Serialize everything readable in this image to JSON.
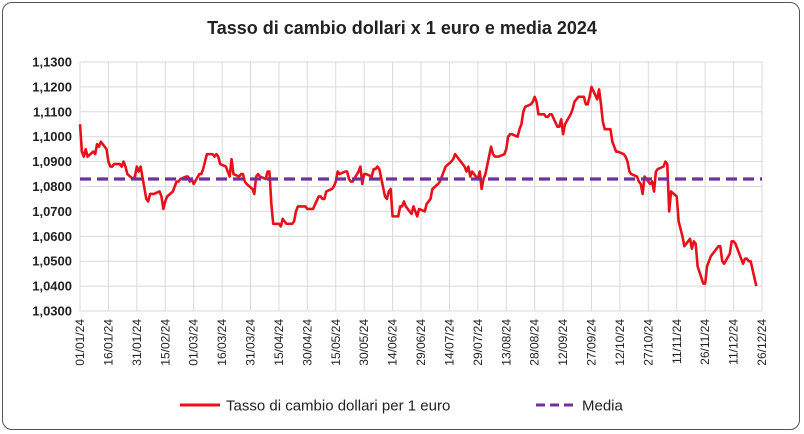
{
  "chart_data": {
    "type": "line",
    "title": "Tasso di cambio dollari x 1 euro e media 2024",
    "xlabel": "",
    "ylabel": "",
    "ylim": [
      1.03,
      1.13
    ],
    "xlim": [
      "2024-01-01",
      "2024-12-26"
    ],
    "y_ticks": [
      "1,0300",
      "1,0400",
      "1,0500",
      "1,0600",
      "1,0700",
      "1,0800",
      "1,0900",
      "1,1000",
      "1,1100",
      "1,1200",
      "1,1300"
    ],
    "x_ticks": [
      "01/01/24",
      "16/01/24",
      "31/01/24",
      "15/02/24",
      "01/03/24",
      "16/03/24",
      "31/03/24",
      "15/04/24",
      "30/04/24",
      "15/05/24",
      "30/05/24",
      "14/06/24",
      "29/06/24",
      "14/07/24",
      "29/07/24",
      "13/08/24",
      "28/08/24",
      "12/09/24",
      "27/09/24",
      "12/10/24",
      "27/10/24",
      "11/11/24",
      "26/11/24",
      "11/12/24",
      "26/12/24"
    ],
    "grid": true,
    "legend_position": "bottom",
    "series": [
      {
        "name": "Tasso di cambio dollari per 1 euro",
        "color": "#e8101a",
        "points": [
          [
            "2024-01-01",
            1.105
          ],
          [
            "2024-01-02",
            1.094
          ],
          [
            "2024-01-03",
            1.092
          ],
          [
            "2024-01-04",
            1.095
          ],
          [
            "2024-01-05",
            1.092
          ],
          [
            "2024-01-08",
            1.094
          ],
          [
            "2024-01-09",
            1.093
          ],
          [
            "2024-01-10",
            1.097
          ],
          [
            "2024-01-11",
            1.096
          ],
          [
            "2024-01-12",
            1.098
          ],
          [
            "2024-01-15",
            1.095
          ],
          [
            "2024-01-16",
            1.09
          ],
          [
            "2024-01-17",
            1.088
          ],
          [
            "2024-01-18",
            1.088
          ],
          [
            "2024-01-19",
            1.089
          ],
          [
            "2024-01-22",
            1.089
          ],
          [
            "2024-01-23",
            1.088
          ],
          [
            "2024-01-24",
            1.09
          ],
          [
            "2024-01-25",
            1.088
          ],
          [
            "2024-01-26",
            1.085
          ],
          [
            "2024-01-29",
            1.083
          ],
          [
            "2024-01-30",
            1.084
          ],
          [
            "2024-01-31",
            1.088
          ],
          [
            "2024-02-01",
            1.086
          ],
          [
            "2024-02-02",
            1.088
          ],
          [
            "2024-02-05",
            1.075
          ],
          [
            "2024-02-06",
            1.074
          ],
          [
            "2024-02-07",
            1.077
          ],
          [
            "2024-02-08",
            1.077
          ],
          [
            "2024-02-09",
            1.077
          ],
          [
            "2024-02-12",
            1.078
          ],
          [
            "2024-02-13",
            1.076
          ],
          [
            "2024-02-14",
            1.071
          ],
          [
            "2024-02-15",
            1.074
          ],
          [
            "2024-02-16",
            1.076
          ],
          [
            "2024-02-19",
            1.078
          ],
          [
            "2024-02-20",
            1.08
          ],
          [
            "2024-02-21",
            1.082
          ],
          [
            "2024-02-22",
            1.082
          ],
          [
            "2024-02-23",
            1.083
          ],
          [
            "2024-02-26",
            1.084
          ],
          [
            "2024-02-27",
            1.084
          ],
          [
            "2024-02-28",
            1.082
          ],
          [
            "2024-02-29",
            1.083
          ],
          [
            "2024-03-01",
            1.081
          ],
          [
            "2024-03-04",
            1.085
          ],
          [
            "2024-03-05",
            1.085
          ],
          [
            "2024-03-06",
            1.087
          ],
          [
            "2024-03-07",
            1.09
          ],
          [
            "2024-03-08",
            1.093
          ],
          [
            "2024-03-11",
            1.093
          ],
          [
            "2024-03-12",
            1.092
          ],
          [
            "2024-03-13",
            1.093
          ],
          [
            "2024-03-14",
            1.092
          ],
          [
            "2024-03-15",
            1.089
          ],
          [
            "2024-03-18",
            1.088
          ],
          [
            "2024-03-19",
            1.086
          ],
          [
            "2024-03-20",
            1.084
          ],
          [
            "2024-03-21",
            1.091
          ],
          [
            "2024-03-22",
            1.085
          ],
          [
            "2024-03-25",
            1.084
          ],
          [
            "2024-03-26",
            1.085
          ],
          [
            "2024-03-27",
            1.085
          ],
          [
            "2024-03-28",
            1.082
          ],
          [
            "2024-03-29",
            1.081
          ],
          [
            "2024-04-01",
            1.079
          ],
          [
            "2024-04-02",
            1.077
          ],
          [
            "2024-04-03",
            1.084
          ],
          [
            "2024-04-04",
            1.085
          ],
          [
            "2024-04-05",
            1.084
          ],
          [
            "2024-04-08",
            1.083
          ],
          [
            "2024-04-09",
            1.086
          ],
          [
            "2024-04-10",
            1.086
          ],
          [
            "2024-04-11",
            1.073
          ],
          [
            "2024-04-12",
            1.065
          ],
          [
            "2024-04-15",
            1.065
          ],
          [
            "2024-04-16",
            1.064
          ],
          [
            "2024-04-17",
            1.067
          ],
          [
            "2024-04-18",
            1.066
          ],
          [
            "2024-04-19",
            1.065
          ],
          [
            "2024-04-22",
            1.065
          ],
          [
            "2024-04-23",
            1.066
          ],
          [
            "2024-04-24",
            1.07
          ],
          [
            "2024-04-25",
            1.072
          ],
          [
            "2024-04-26",
            1.072
          ],
          [
            "2024-04-29",
            1.072
          ],
          [
            "2024-04-30",
            1.071
          ],
          [
            "2024-05-01",
            1.071
          ],
          [
            "2024-05-02",
            1.071
          ],
          [
            "2024-05-03",
            1.071
          ],
          [
            "2024-05-06",
            1.076
          ],
          [
            "2024-05-07",
            1.076
          ],
          [
            "2024-05-08",
            1.075
          ],
          [
            "2024-05-09",
            1.075
          ],
          [
            "2024-05-10",
            1.078
          ],
          [
            "2024-05-13",
            1.079
          ],
          [
            "2024-05-14",
            1.08
          ],
          [
            "2024-05-15",
            1.082
          ],
          [
            "2024-05-16",
            1.086
          ],
          [
            "2024-05-17",
            1.085
          ],
          [
            "2024-05-20",
            1.086
          ],
          [
            "2024-05-21",
            1.086
          ],
          [
            "2024-05-22",
            1.083
          ],
          [
            "2024-05-23",
            1.082
          ],
          [
            "2024-05-24",
            1.082
          ],
          [
            "2024-05-27",
            1.086
          ],
          [
            "2024-05-28",
            1.088
          ],
          [
            "2024-05-29",
            1.081
          ],
          [
            "2024-05-30",
            1.085
          ],
          [
            "2024-05-31",
            1.085
          ],
          [
            "2024-06-03",
            1.084
          ],
          [
            "2024-06-04",
            1.087
          ],
          [
            "2024-06-05",
            1.087
          ],
          [
            "2024-06-06",
            1.088
          ],
          [
            "2024-06-07",
            1.087
          ],
          [
            "2024-06-10",
            1.076
          ],
          [
            "2024-06-11",
            1.075
          ],
          [
            "2024-06-12",
            1.078
          ],
          [
            "2024-06-13",
            1.079
          ],
          [
            "2024-06-14",
            1.068
          ],
          [
            "2024-06-17",
            1.068
          ],
          [
            "2024-06-18",
            1.072
          ],
          [
            "2024-06-19",
            1.072
          ],
          [
            "2024-06-20",
            1.074
          ],
          [
            "2024-06-21",
            1.072
          ],
          [
            "2024-06-24",
            1.069
          ],
          [
            "2024-06-25",
            1.072
          ],
          [
            "2024-06-26",
            1.07
          ],
          [
            "2024-06-27",
            1.068
          ],
          [
            "2024-06-28",
            1.071
          ],
          [
            "2024-07-01",
            1.07
          ],
          [
            "2024-07-02",
            1.073
          ],
          [
            "2024-07-03",
            1.074
          ],
          [
            "2024-07-04",
            1.075
          ],
          [
            "2024-07-05",
            1.079
          ],
          [
            "2024-07-08",
            1.081
          ],
          [
            "2024-07-09",
            1.082
          ],
          [
            "2024-07-10",
            1.084
          ],
          [
            "2024-07-11",
            1.086
          ],
          [
            "2024-07-12",
            1.088
          ],
          [
            "2024-07-15",
            1.09
          ],
          [
            "2024-07-16",
            1.091
          ],
          [
            "2024-07-17",
            1.093
          ],
          [
            "2024-07-18",
            1.092
          ],
          [
            "2024-07-19",
            1.091
          ],
          [
            "2024-07-22",
            1.088
          ],
          [
            "2024-07-23",
            1.086
          ],
          [
            "2024-07-24",
            1.088
          ],
          [
            "2024-07-25",
            1.084
          ],
          [
            "2024-07-26",
            1.086
          ],
          [
            "2024-07-29",
            1.083
          ],
          [
            "2024-07-30",
            1.086
          ],
          [
            "2024-07-31",
            1.079
          ],
          [
            "2024-08-01",
            1.083
          ],
          [
            "2024-08-02",
            1.085
          ],
          [
            "2024-08-05",
            1.096
          ],
          [
            "2024-08-06",
            1.093
          ],
          [
            "2024-08-07",
            1.092
          ],
          [
            "2024-08-08",
            1.092
          ],
          [
            "2024-08-09",
            1.092
          ],
          [
            "2024-08-12",
            1.093
          ],
          [
            "2024-08-13",
            1.095
          ],
          [
            "2024-08-14",
            1.1
          ],
          [
            "2024-08-15",
            1.101
          ],
          [
            "2024-08-16",
            1.101
          ],
          [
            "2024-08-19",
            1.1
          ],
          [
            "2024-08-20",
            1.103
          ],
          [
            "2024-08-21",
            1.105
          ],
          [
            "2024-08-22",
            1.11
          ],
          [
            "2024-08-23",
            1.112
          ],
          [
            "2024-08-26",
            1.113
          ],
          [
            "2024-08-27",
            1.114
          ],
          [
            "2024-08-28",
            1.116
          ],
          [
            "2024-08-29",
            1.114
          ],
          [
            "2024-08-30",
            1.109
          ],
          [
            "2024-09-02",
            1.109
          ],
          [
            "2024-09-03",
            1.108
          ],
          [
            "2024-09-04",
            1.108
          ],
          [
            "2024-09-05",
            1.109
          ],
          [
            "2024-09-06",
            1.109
          ],
          [
            "2024-09-09",
            1.104
          ],
          [
            "2024-09-10",
            1.104
          ],
          [
            "2024-09-11",
            1.107
          ],
          [
            "2024-09-12",
            1.101
          ],
          [
            "2024-09-13",
            1.105
          ],
          [
            "2024-09-16",
            1.109
          ],
          [
            "2024-09-17",
            1.111
          ],
          [
            "2024-09-18",
            1.114
          ],
          [
            "2024-09-19",
            1.115
          ],
          [
            "2024-09-20",
            1.116
          ],
          [
            "2024-09-23",
            1.116
          ],
          [
            "2024-09-24",
            1.113
          ],
          [
            "2024-09-25",
            1.113
          ],
          [
            "2024-09-26",
            1.116
          ],
          [
            "2024-09-27",
            1.12
          ],
          [
            "2024-09-30",
            1.115
          ],
          [
            "2024-10-01",
            1.119
          ],
          [
            "2024-10-02",
            1.113
          ],
          [
            "2024-10-03",
            1.106
          ],
          [
            "2024-10-04",
            1.103
          ],
          [
            "2024-10-07",
            1.103
          ],
          [
            "2024-10-08",
            1.098
          ],
          [
            "2024-10-09",
            1.096
          ],
          [
            "2024-10-10",
            1.094
          ],
          [
            "2024-10-11",
            1.094
          ],
          [
            "2024-10-14",
            1.093
          ],
          [
            "2024-10-15",
            1.092
          ],
          [
            "2024-10-16",
            1.09
          ],
          [
            "2024-10-17",
            1.086
          ],
          [
            "2024-10-18",
            1.085
          ],
          [
            "2024-10-21",
            1.084
          ],
          [
            "2024-10-22",
            1.082
          ],
          [
            "2024-10-23",
            1.081
          ],
          [
            "2024-10-24",
            1.077
          ],
          [
            "2024-10-25",
            1.084
          ],
          [
            "2024-10-28",
            1.081
          ],
          [
            "2024-10-29",
            1.082
          ],
          [
            "2024-10-30",
            1.078
          ],
          [
            "2024-10-31",
            1.086
          ],
          [
            "2024-11-01",
            1.087
          ],
          [
            "2024-11-04",
            1.088
          ],
          [
            "2024-11-05",
            1.09
          ],
          [
            "2024-11-06",
            1.089
          ],
          [
            "2024-11-07",
            1.07
          ],
          [
            "2024-11-08",
            1.078
          ],
          [
            "2024-11-11",
            1.076
          ],
          [
            "2024-11-12",
            1.066
          ],
          [
            "2024-11-13",
            1.063
          ],
          [
            "2024-11-14",
            1.06
          ],
          [
            "2024-11-15",
            1.056
          ],
          [
            "2024-11-18",
            1.059
          ],
          [
            "2024-11-19",
            1.055
          ],
          [
            "2024-11-20",
            1.058
          ],
          [
            "2024-11-21",
            1.057
          ],
          [
            "2024-11-22",
            1.048
          ],
          [
            "2024-11-25",
            1.041
          ],
          [
            "2024-11-26",
            1.041
          ],
          [
            "2024-11-27",
            1.048
          ],
          [
            "2024-11-28",
            1.05
          ],
          [
            "2024-11-29",
            1.052
          ],
          [
            "2024-12-02",
            1.055
          ],
          [
            "2024-12-03",
            1.056
          ],
          [
            "2024-12-04",
            1.056
          ],
          [
            "2024-12-05",
            1.05
          ],
          [
            "2024-12-06",
            1.049
          ],
          [
            "2024-12-09",
            1.053
          ],
          [
            "2024-12-10",
            1.058
          ],
          [
            "2024-12-11",
            1.058
          ],
          [
            "2024-12-12",
            1.057
          ],
          [
            "2024-12-13",
            1.055
          ],
          [
            "2024-12-16",
            1.049
          ],
          [
            "2024-12-17",
            1.051
          ],
          [
            "2024-12-18",
            1.051
          ],
          [
            "2024-12-19",
            1.05
          ],
          [
            "2024-12-20",
            1.05
          ],
          [
            "2024-12-23",
            1.04
          ]
        ]
      },
      {
        "name": "Media",
        "color": "#7030a0",
        "style": "dashed",
        "points": [
          [
            "2024-01-01",
            1.083
          ],
          [
            "2024-12-26",
            1.083
          ]
        ]
      }
    ]
  }
}
